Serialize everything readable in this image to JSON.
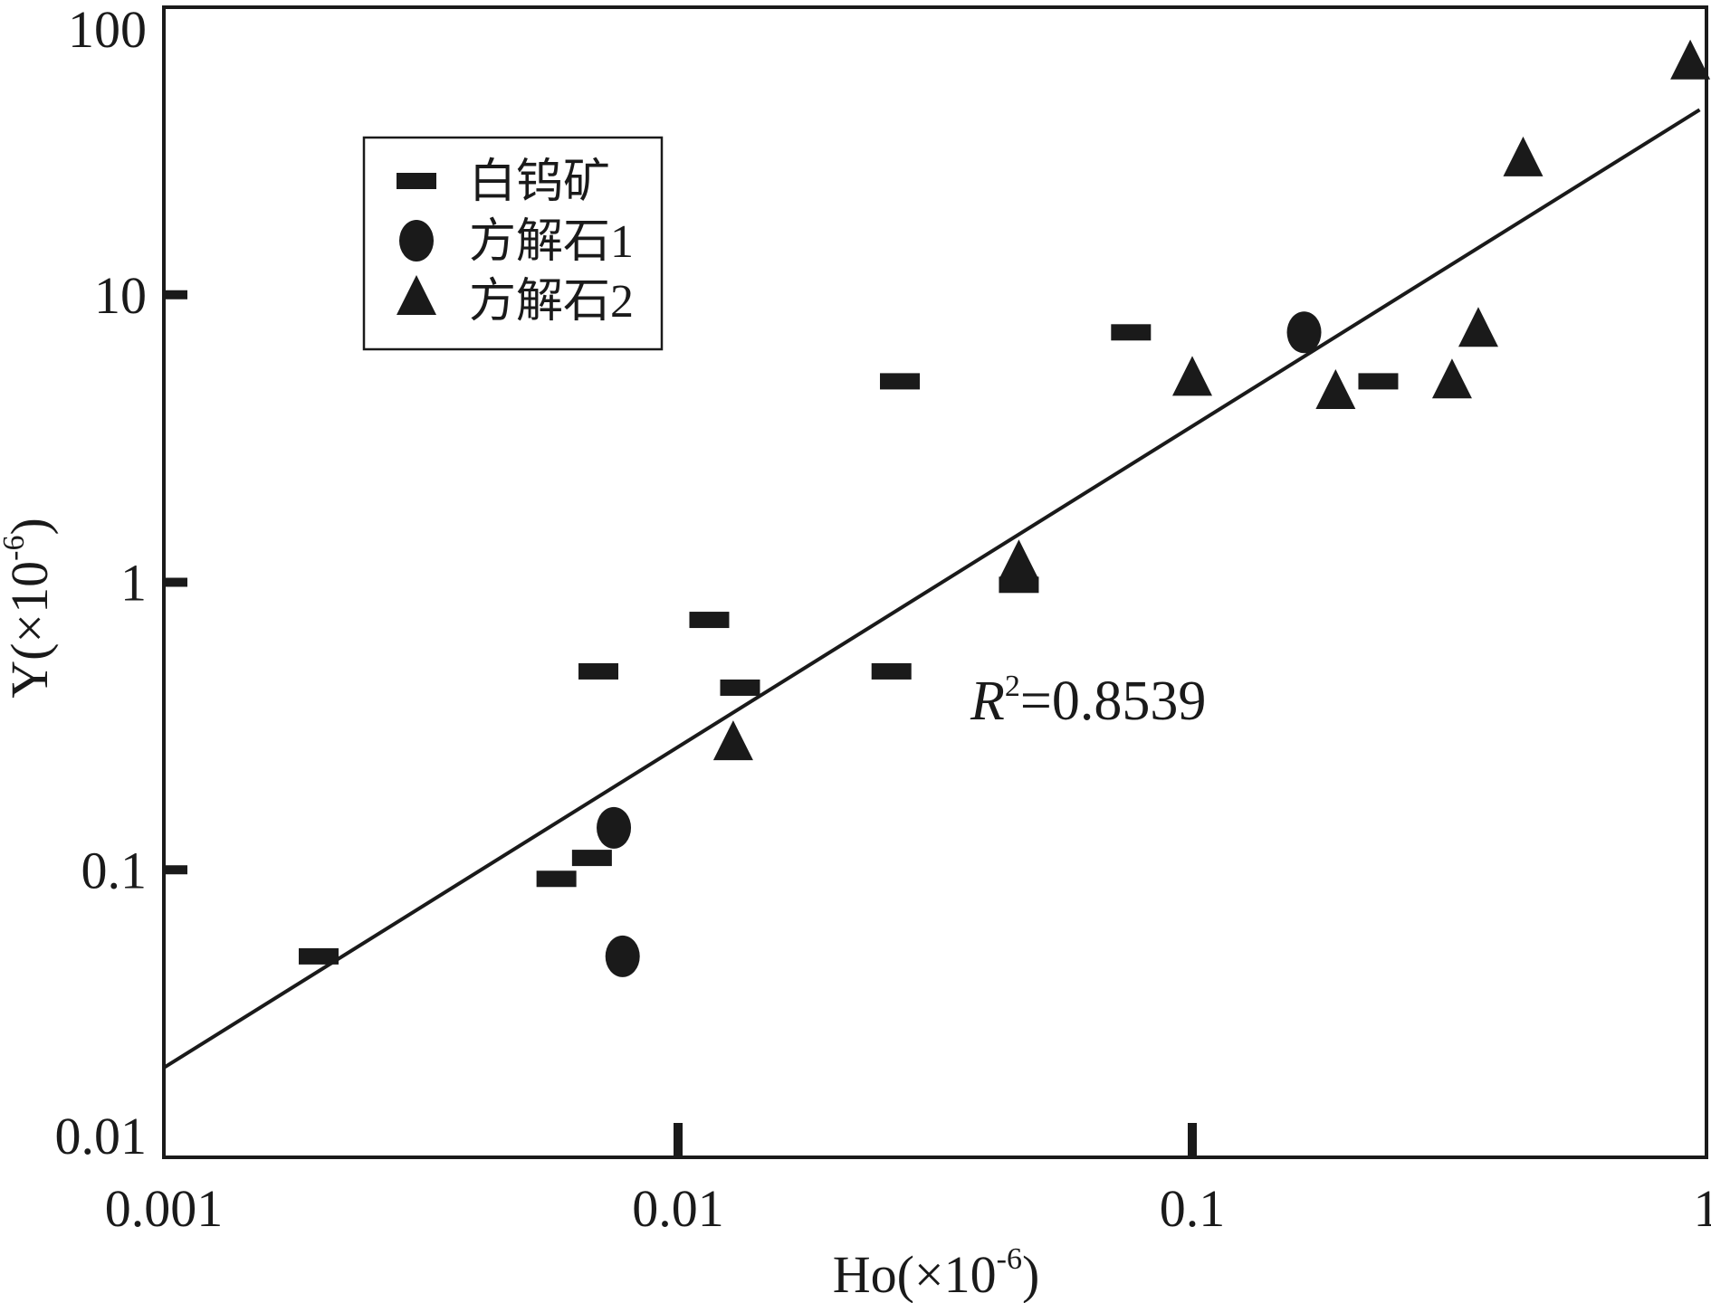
{
  "chart_data": {
    "type": "scatter",
    "title": "",
    "xlabel": {
      "main": "Ho(×10",
      "exp": "-6",
      "close": ")"
    },
    "ylabel": {
      "main": "Y(×10",
      "exp": "-6",
      "close": ")"
    },
    "xscale": "log",
    "yscale": "log",
    "xlim": [
      0.001,
      1
    ],
    "ylim": [
      0.01,
      100
    ],
    "x_ticks": [
      {
        "value": 0.001,
        "label": "0.001"
      },
      {
        "value": 0.01,
        "label": "0.01"
      },
      {
        "value": 0.1,
        "label": "0.1"
      },
      {
        "value": 1,
        "label": "1"
      }
    ],
    "y_ticks": [
      {
        "value": 0.01,
        "label": "0.01"
      },
      {
        "value": 0.1,
        "label": "0.1"
      },
      {
        "value": 1,
        "label": "1"
      },
      {
        "value": 10,
        "label": "10"
      },
      {
        "value": 100,
        "label": "100"
      }
    ],
    "grid": false,
    "legend": {
      "placement": "top-left",
      "entries": [
        {
          "label": "白钨矿",
          "marker": "dash"
        },
        {
          "label": "方解石1",
          "marker": "circle"
        },
        {
          "label": "方解石2",
          "marker": "triangle"
        }
      ]
    },
    "series": [
      {
        "name": "白钨矿",
        "marker": "dash",
        "points": [
          {
            "x": 0.002,
            "y": 0.05
          },
          {
            "x": 0.0058,
            "y": 0.093
          },
          {
            "x": 0.0068,
            "y": 0.11
          },
          {
            "x": 0.007,
            "y": 0.49
          },
          {
            "x": 0.0115,
            "y": 0.74
          },
          {
            "x": 0.0132,
            "y": 0.43
          },
          {
            "x": 0.027,
            "y": 5.0
          },
          {
            "x": 0.026,
            "y": 0.49
          },
          {
            "x": 0.046,
            "y": 0.98
          },
          {
            "x": 0.076,
            "y": 7.4
          },
          {
            "x": 0.23,
            "y": 5.0
          }
        ]
      },
      {
        "name": "方解石1",
        "marker": "circle",
        "points": [
          {
            "x": 0.0075,
            "y": 0.14
          },
          {
            "x": 0.0078,
            "y": 0.05
          },
          {
            "x": 0.165,
            "y": 7.4
          }
        ]
      },
      {
        "name": "方解石2",
        "marker": "triangle",
        "points": [
          {
            "x": 0.0128,
            "y": 0.27
          },
          {
            "x": 0.046,
            "y": 1.15
          },
          {
            "x": 0.1,
            "y": 5.0
          },
          {
            "x": 0.19,
            "y": 4.5
          },
          {
            "x": 0.32,
            "y": 4.9
          },
          {
            "x": 0.36,
            "y": 7.4
          },
          {
            "x": 0.44,
            "y": 29
          },
          {
            "x": 0.93,
            "y": 63
          }
        ]
      }
    ],
    "fit_line": {
      "points": [
        {
          "x": 0.001,
          "y": 0.0205
        },
        {
          "x": 0.97,
          "y": 44
        }
      ]
    },
    "annotation": {
      "base": "R",
      "exp": "2",
      "rest": "=0.8539"
    },
    "colors": {
      "ink": "#1a1a1a",
      "background": "#ffffff"
    }
  }
}
